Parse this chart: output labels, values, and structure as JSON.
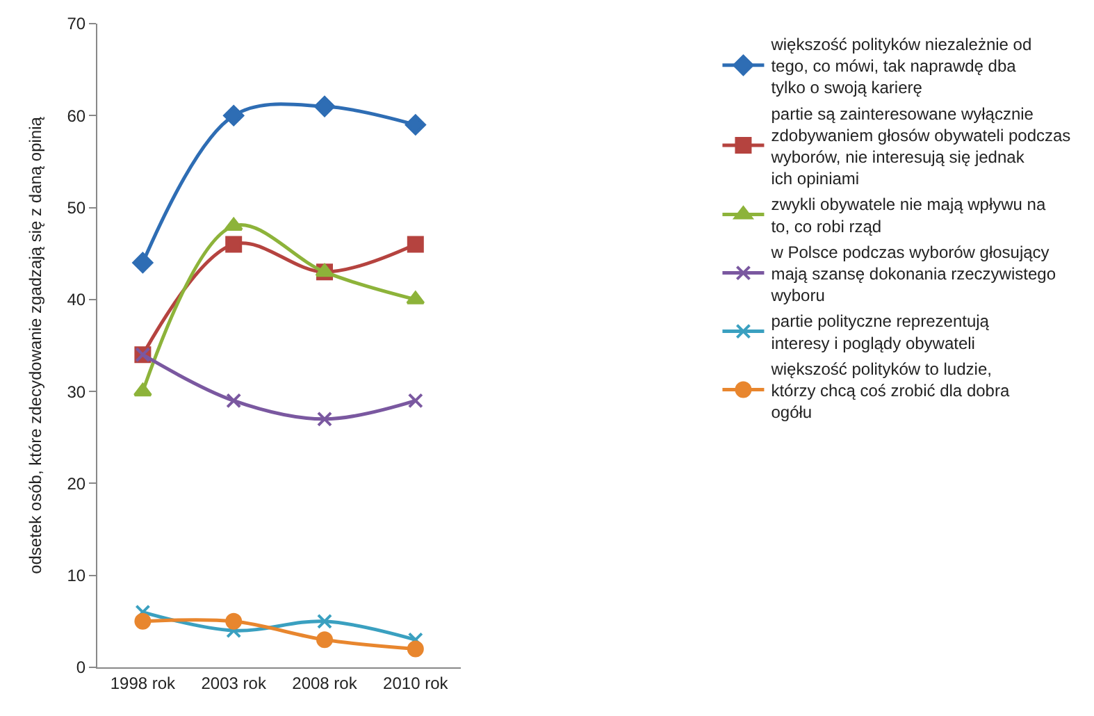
{
  "chart_data": {
    "type": "line",
    "ylabel": "odsetek osób, które zdecydowanie zgadzają się z daną opinią",
    "categories": [
      "1998 rok",
      "2003 rok",
      "2008 rok",
      "2010 rok"
    ],
    "ylim": [
      0,
      70
    ],
    "yticks": [
      0,
      10,
      20,
      30,
      40,
      50,
      60,
      70
    ],
    "legend": "right",
    "series": [
      {
        "name": "większość polityków niezależnie od tego, co mówi, tak naprawdę dba tylko o swoją karierę",
        "color": "#2e6db4",
        "marker": "diamond",
        "values": [
          44,
          60,
          61,
          59
        ]
      },
      {
        "name": "partie są zainteresowane wyłącznie zdobywaniem głosów obywateli podczas wyborów, nie interesują się jednak ich opiniami",
        "color": "#b5433f",
        "marker": "square",
        "values": [
          34,
          46,
          43,
          46
        ]
      },
      {
        "name": "zwykli obywatele nie mają wpływu na to, co robi rząd",
        "color": "#8db33a",
        "marker": "triangle",
        "values": [
          30,
          48,
          43,
          40
        ]
      },
      {
        "name": "w Polsce podczas wyborów głosujący mają szansę dokonania rzeczywistego wyboru",
        "color": "#7a58a0",
        "marker": "cross",
        "values": [
          34,
          29,
          27,
          29
        ]
      },
      {
        "name": "partie polityczne reprezentują interesy i poglądy obywateli",
        "color": "#3aa0c0",
        "marker": "cross",
        "values": [
          6,
          4,
          5,
          3
        ]
      },
      {
        "name": "większość polityków to ludzie, którzy chcą coś zrobić dla dobra ogółu",
        "color": "#e8862e",
        "marker": "circle",
        "values": [
          5,
          5,
          3,
          2
        ]
      }
    ]
  }
}
